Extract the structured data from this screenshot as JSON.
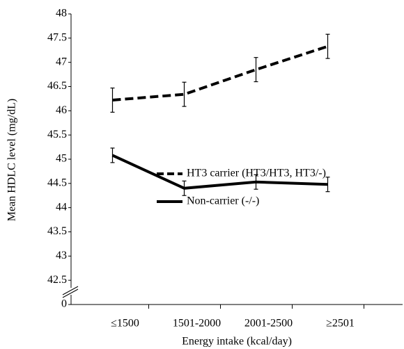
{
  "chart_data": {
    "type": "line",
    "x_label": "Energy intake (kcal/day)",
    "y_label": "Mean HDLC level (mg/dL)",
    "categories": [
      "≤1500",
      "1501-2000",
      "2001-2500",
      "≥2501"
    ],
    "series": [
      {
        "name": "HT3 carrier (HT3/HT3, HT3/-)",
        "color": "#000000",
        "dash": true,
        "values": [
          46.22,
          46.34,
          46.85,
          47.33
        ],
        "errors": [
          0.25,
          0.25,
          0.25,
          0.25
        ]
      },
      {
        "name": "Non-carrier (-/-)",
        "color": "#000000",
        "dash": false,
        "values": [
          45.08,
          44.4,
          44.53,
          44.48
        ],
        "errors": [
          0.15,
          0.15,
          0.15,
          0.15
        ]
      }
    ],
    "ylim": [
      0,
      48
    ],
    "y_axis_break": [
      0,
      42
    ],
    "yticks": [
      0,
      42.5,
      43,
      43.5,
      44,
      44.5,
      45,
      45.5,
      46,
      46.5,
      47,
      47.5,
      48
    ],
    "grid": false
  }
}
